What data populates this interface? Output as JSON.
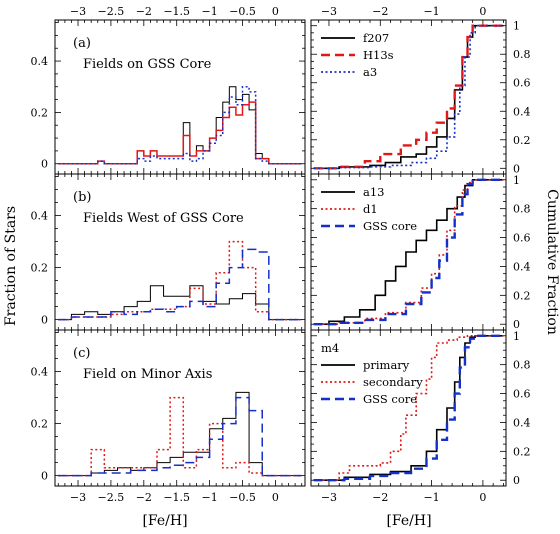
{
  "figure": {
    "ylabel_left": "Fraction of Stars",
    "ylabel_right": "Cumulative Fraction",
    "xlabel": "[Fe/H]"
  },
  "colors": {
    "black": "#000000",
    "red": "#e01818",
    "blue": "#1530c8"
  },
  "chart_data": [
    {
      "type": "histogram",
      "id": "a",
      "column": "left",
      "label": "(a)",
      "title": "Fields on GSS Core",
      "xlim": [
        -3.35,
        0.45
      ],
      "ylim": [
        -0.04,
        0.56
      ],
      "xticks": [
        -3,
        -2.5,
        -2,
        -1.5,
        -1,
        -0.5,
        0
      ],
      "yticks": [
        0,
        0.2,
        0.4
      ],
      "series": [
        {
          "key": "f207",
          "color": "#000000",
          "dash": "",
          "edges": [
            -3.3,
            -2.7,
            -2.6,
            -2.1,
            -2.0,
            -1.9,
            -1.8,
            -1.4,
            -1.3,
            -1.2,
            -1.1,
            -1.0,
            -0.9,
            -0.8,
            -0.7,
            -0.6,
            -0.5,
            -0.4,
            -0.3,
            -0.2,
            -0.1,
            0.4
          ],
          "values": [
            0,
            0.01,
            0,
            0.05,
            0.03,
            0.05,
            0.03,
            0.16,
            0.03,
            0.07,
            0.05,
            0.1,
            0.18,
            0.24,
            0.3,
            0.25,
            0.27,
            0.21,
            0.04,
            0.02,
            0
          ]
        },
        {
          "key": "H13s",
          "color": "#e01818",
          "dash": "",
          "edges": [
            -3.3,
            -2.7,
            -2.6,
            -2.1,
            -2.0,
            -1.9,
            -1.8,
            -1.4,
            -1.3,
            -1.2,
            -1.1,
            -1.0,
            -0.9,
            -0.8,
            -0.7,
            -0.6,
            -0.5,
            -0.4,
            -0.3,
            -0.2,
            -0.1,
            0.4
          ],
          "values": [
            0,
            0.01,
            0,
            0.05,
            0.03,
            0.05,
            0.03,
            0.11,
            0.03,
            0.05,
            0.05,
            0.1,
            0.13,
            0.18,
            0.22,
            0.19,
            0.23,
            0.24,
            0.02,
            0.02,
            0
          ]
        },
        {
          "key": "a3",
          "color": "#1530c8",
          "dash": "2,2.5",
          "edges": [
            -3.3,
            -2.7,
            -2.6,
            -2.1,
            -2.0,
            -1.9,
            -1.8,
            -1.4,
            -1.3,
            -1.2,
            -1.1,
            -1.0,
            -0.9,
            -0.8,
            -0.7,
            -0.6,
            -0.5,
            -0.4,
            -0.3,
            -0.2,
            -0.1,
            0.4
          ],
          "values": [
            0,
            0.01,
            0,
            0.02,
            0.01,
            0.03,
            0.02,
            0.04,
            0.01,
            0.02,
            0.05,
            0.08,
            0.11,
            0.2,
            0.26,
            0.23,
            0.3,
            0.28,
            0.02,
            0.01,
            0
          ]
        }
      ]
    },
    {
      "type": "line",
      "id": "a-cum",
      "column": "right",
      "xlim": [
        -3.35,
        0.45
      ],
      "ylim": [
        -0.04,
        1.04
      ],
      "xticks": [
        -3,
        -2,
        -1,
        0
      ],
      "yticks": [
        0,
        0.2,
        0.4,
        0.6,
        0.8,
        1
      ],
      "legend": "top-left",
      "series": [
        {
          "name": "f207",
          "color": "#000000",
          "dash": "",
          "x": [
            -3.3,
            -2.8,
            -2.2,
            -1.9,
            -1.6,
            -1.3,
            -1.1,
            -0.9,
            -0.7,
            -0.55,
            -0.4,
            -0.3,
            -0.2,
            0.4
          ],
          "y": [
            0,
            0.01,
            0.02,
            0.04,
            0.08,
            0.1,
            0.15,
            0.22,
            0.35,
            0.55,
            0.78,
            0.92,
            1.0,
            1.0
          ]
        },
        {
          "name": "H13s",
          "color": "#e01818",
          "dash": "9,5",
          "x": [
            -3.3,
            -2.8,
            -2.3,
            -2.0,
            -1.6,
            -1.3,
            -1.1,
            -0.9,
            -0.7,
            -0.55,
            -0.4,
            -0.3,
            -0.2,
            0.4
          ],
          "y": [
            0,
            0.01,
            0.05,
            0.1,
            0.16,
            0.2,
            0.25,
            0.32,
            0.42,
            0.58,
            0.78,
            0.92,
            1.0,
            1.0
          ]
        },
        {
          "name": "a3",
          "color": "#1530c8",
          "dash": "2,2.5",
          "x": [
            -3.3,
            -2.8,
            -2.2,
            -1.8,
            -1.4,
            -1.1,
            -0.9,
            -0.7,
            -0.55,
            -0.45,
            -0.35,
            -0.25,
            -0.15,
            0.4
          ],
          "y": [
            0,
            0.005,
            0.01,
            0.02,
            0.04,
            0.07,
            0.12,
            0.22,
            0.38,
            0.58,
            0.78,
            0.95,
            1.0,
            1.0
          ]
        }
      ]
    },
    {
      "type": "histogram",
      "id": "b",
      "column": "left",
      "label": "(b)",
      "title": "Fields West of GSS Core",
      "xlim": [
        -3.35,
        0.45
      ],
      "ylim": [
        -0.04,
        0.56
      ],
      "xticks": [
        -3,
        -2.5,
        -2,
        -1.5,
        -1,
        -0.5,
        0
      ],
      "yticks": [
        0,
        0.2,
        0.4
      ],
      "series": [
        {
          "key": "a13",
          "color": "#000000",
          "dash": "",
          "edges": [
            -3.3,
            -3.1,
            -2.9,
            -2.7,
            -2.5,
            -2.3,
            -2.1,
            -1.9,
            -1.7,
            -1.5,
            -1.3,
            -1.1,
            -0.9,
            -0.7,
            -0.5,
            -0.3,
            -0.1,
            0.4
          ],
          "values": [
            0,
            0.02,
            0.03,
            0.02,
            0.03,
            0.05,
            0.07,
            0.13,
            0.09,
            0.09,
            0.13,
            0.07,
            0.06,
            0.08,
            0.1,
            0.06,
            0
          ]
        },
        {
          "key": "d1",
          "color": "#e01818",
          "dash": "2,2.5",
          "edges": [
            -3.3,
            -3.1,
            -2.9,
            -2.7,
            -2.5,
            -2.3,
            -2.1,
            -1.9,
            -1.7,
            -1.5,
            -1.3,
            -1.1,
            -0.9,
            -0.7,
            -0.5,
            -0.3,
            -0.1,
            0.4
          ],
          "values": [
            0,
            0.01,
            0.01,
            0.01,
            0.02,
            0.03,
            0.03,
            0.04,
            0.04,
            0.05,
            0.12,
            0.06,
            0.18,
            0.3,
            0.2,
            0.03,
            0
          ]
        },
        {
          "key": "GSS core",
          "color": "#1530c8",
          "dash": "9,5",
          "edges": [
            -3.3,
            -3.1,
            -2.9,
            -2.7,
            -2.5,
            -2.3,
            -2.1,
            -1.9,
            -1.7,
            -1.5,
            -1.3,
            -1.1,
            -0.9,
            -0.7,
            -0.5,
            -0.3,
            -0.1,
            0.4
          ],
          "values": [
            0,
            0.01,
            0.01,
            0.01,
            0.03,
            0.02,
            0.03,
            0.04,
            0.03,
            0.05,
            0.07,
            0.05,
            0.14,
            0.2,
            0.27,
            0.26,
            0
          ]
        }
      ]
    },
    {
      "type": "line",
      "id": "b-cum",
      "column": "right",
      "xlim": [
        -3.35,
        0.45
      ],
      "ylim": [
        -0.04,
        1.04
      ],
      "xticks": [
        -3,
        -2,
        -1,
        0
      ],
      "yticks": [
        0,
        0.2,
        0.4,
        0.6,
        0.8,
        1
      ],
      "legend": "top-left",
      "series": [
        {
          "name": "a13",
          "color": "#000000",
          "dash": "",
          "x": [
            -3.3,
            -3.0,
            -2.7,
            -2.4,
            -2.1,
            -1.9,
            -1.7,
            -1.5,
            -1.3,
            -1.1,
            -0.9,
            -0.7,
            -0.5,
            -0.35,
            -0.2,
            0.4
          ],
          "y": [
            0,
            0.02,
            0.05,
            0.1,
            0.2,
            0.3,
            0.4,
            0.5,
            0.58,
            0.65,
            0.72,
            0.8,
            0.88,
            0.96,
            1.0,
            1.0
          ]
        },
        {
          "name": "d1",
          "color": "#e01818",
          "dash": "2,2.5",
          "x": [
            -3.3,
            -2.8,
            -2.3,
            -1.9,
            -1.5,
            -1.2,
            -1.0,
            -0.85,
            -0.7,
            -0.55,
            -0.4,
            -0.3,
            -0.2,
            0.4
          ],
          "y": [
            0,
            0.01,
            0.04,
            0.08,
            0.15,
            0.25,
            0.35,
            0.48,
            0.65,
            0.82,
            0.93,
            0.98,
            1.0,
            1.0
          ]
        },
        {
          "name": "GSS core",
          "color": "#1530c8",
          "dash": "9,5",
          "x": [
            -3.3,
            -2.8,
            -2.3,
            -1.9,
            -1.5,
            -1.2,
            -1.0,
            -0.85,
            -0.7,
            -0.55,
            -0.4,
            -0.3,
            -0.2,
            0.4
          ],
          "y": [
            0,
            0.01,
            0.03,
            0.07,
            0.14,
            0.22,
            0.32,
            0.44,
            0.6,
            0.76,
            0.9,
            0.97,
            1.0,
            1.0
          ]
        }
      ]
    },
    {
      "type": "histogram",
      "id": "c",
      "column": "left",
      "label": "(c)",
      "title": "Field on Minor Axis",
      "xlim": [
        -3.35,
        0.45
      ],
      "ylim": [
        -0.04,
        0.56
      ],
      "xticks": [
        -3,
        -2.5,
        -2,
        -1.5,
        -1,
        -0.5,
        0
      ],
      "yticks": [
        0,
        0.2,
        0.4
      ],
      "series": [
        {
          "key": "primary",
          "color": "#000000",
          "dash": "",
          "edges": [
            -3.3,
            -2.8,
            -2.6,
            -2.4,
            -2.2,
            -2.0,
            -1.8,
            -1.6,
            -1.4,
            -1.2,
            -1.0,
            -0.8,
            -0.6,
            -0.4,
            -0.2,
            0.4
          ],
          "values": [
            0,
            0.01,
            0.02,
            0.03,
            0.02,
            0.03,
            0.05,
            0.07,
            0.09,
            0.09,
            0.18,
            0.22,
            0.32,
            0.05,
            0
          ]
        },
        {
          "key": "secondary",
          "color": "#e01818",
          "dash": "2,2.5",
          "edges": [
            -3.3,
            -2.8,
            -2.6,
            -2.4,
            -2.2,
            -2.0,
            -1.8,
            -1.6,
            -1.4,
            -1.2,
            -1.0,
            -0.8,
            -0.6,
            -0.4,
            -0.2,
            0.4
          ],
          "values": [
            0,
            0.1,
            0.03,
            0.03,
            0.03,
            0.03,
            0.1,
            0.3,
            0.03,
            0.1,
            0.2,
            0.03,
            0.05,
            0.01,
            0
          ]
        },
        {
          "key": "GSS core",
          "color": "#1530c8",
          "dash": "9,5",
          "edges": [
            -3.3,
            -2.8,
            -2.6,
            -2.4,
            -2.2,
            -2.0,
            -1.8,
            -1.6,
            -1.4,
            -1.2,
            -1.0,
            -0.8,
            -0.6,
            -0.4,
            -0.2,
            0.4
          ],
          "values": [
            0,
            0.01,
            0.01,
            0.01,
            0.02,
            0.02,
            0.03,
            0.04,
            0.05,
            0.07,
            0.14,
            0.2,
            0.3,
            0.25,
            0
          ]
        }
      ]
    },
    {
      "type": "line",
      "id": "c-cum",
      "column": "right",
      "xlim": [
        -3.35,
        0.45
      ],
      "ylim": [
        -0.04,
        1.04
      ],
      "xticks": [
        -3,
        -2,
        -1,
        0
      ],
      "yticks": [
        0,
        0.2,
        0.4,
        0.6,
        0.8,
        1
      ],
      "legend": "top-left",
      "legend_title": "m4",
      "series": [
        {
          "name": "primary",
          "color": "#000000",
          "dash": "",
          "x": [
            -3.3,
            -2.7,
            -2.2,
            -1.8,
            -1.4,
            -1.1,
            -0.9,
            -0.7,
            -0.55,
            -0.45,
            -0.35,
            -0.25,
            -0.15,
            0.4
          ],
          "y": [
            0,
            0.02,
            0.04,
            0.06,
            0.1,
            0.2,
            0.35,
            0.5,
            0.68,
            0.85,
            0.95,
            0.99,
            1.0,
            1.0
          ]
        },
        {
          "name": "secondary",
          "color": "#e01818",
          "dash": "2,2.5",
          "x": [
            -3.3,
            -2.8,
            -2.6,
            -2.0,
            -1.8,
            -1.6,
            -1.5,
            -1.3,
            -1.1,
            -1.0,
            -0.9,
            -0.7,
            -0.5,
            -0.3,
            0.4
          ],
          "y": [
            0,
            0.05,
            0.1,
            0.12,
            0.2,
            0.32,
            0.45,
            0.6,
            0.7,
            0.85,
            0.95,
            0.97,
            0.99,
            1.0,
            1.0
          ]
        },
        {
          "name": "GSS core",
          "color": "#1530c8",
          "dash": "9,5",
          "x": [
            -3.3,
            -2.7,
            -2.2,
            -1.8,
            -1.4,
            -1.1,
            -0.9,
            -0.7,
            -0.55,
            -0.45,
            -0.35,
            -0.25,
            -0.15,
            0.4
          ],
          "y": [
            0,
            0.01,
            0.03,
            0.05,
            0.08,
            0.15,
            0.28,
            0.42,
            0.6,
            0.78,
            0.92,
            0.98,
            1.0,
            1.0
          ]
        }
      ]
    }
  ]
}
